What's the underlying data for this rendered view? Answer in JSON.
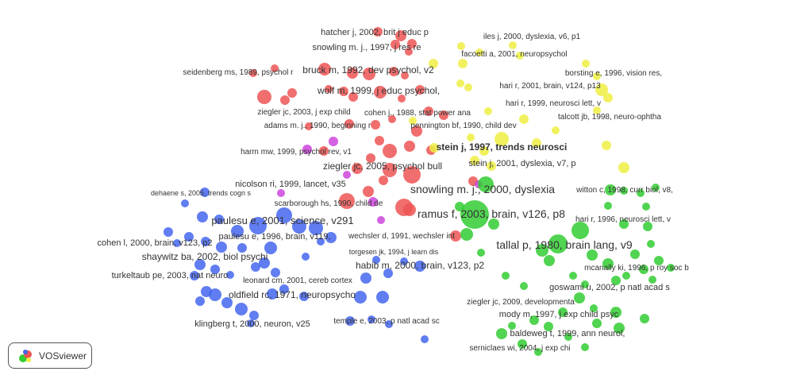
{
  "app": {
    "name": "VOSviewer"
  },
  "cluster_colors": {
    "red": "#ee5555",
    "green": "#33cc33",
    "blue": "#4466ee",
    "yellow": "#eeee44",
    "purple": "#cc44dd"
  },
  "labels": [
    "hatcher j, 2002, brit j educ p",
    "snowling m. j., 1997, j res re",
    "iles j, 2000, dyslexia, v6, p1",
    "facoetti a, 2001, neuropsychol",
    "seidenberg ms, 1989, psychol r",
    "bruck m, 1992, dev psychol, v2",
    "borsting e, 1996, vision res,",
    "hari r, 2001, brain, v124, p13",
    "wolf m, 1999, j educ psychol,",
    "hari r, 1999, neurosci lett, v",
    "ziegler jc, 2003, j exp child",
    "cohen j., 1988, stat power ana",
    "talcott jb, 1998, neuro-ophtha",
    "adams m. j., 1990, beginning r",
    "pennington bf, 1990, child dev",
    "stein j, 1997, trends neurosci",
    "harm mw, 1999, psychol rev, v1",
    "stein j, 2001, dyslexia, v7, p",
    "ziegler jc, 2005, psychol bull",
    "nicolson ri, 1999, lancet, v35",
    "snowling m. j., 2000, dyslexia",
    "witton c, 1998, curr biol, v8,",
    "dehaene s, 2005, trends cogn s",
    "scarborough hs, 1990, child de",
    "ramus f, 2003, brain, v126, p8",
    "paulesu e, 2001, science, v291",
    "hari r, 1996, neurosci lett, v",
    "paulesu e, 1996, brain, v119,",
    "wechsler d, 1991, wechsler int",
    "cohen l, 2000, brain, v123, p2",
    "tallal p, 1980, brain lang, v9",
    "torgesen jk, 1994, j learn dis",
    "shaywitz ba, 2002, biol psychi",
    "habib m, 2000, brain, v123, p2",
    "mcanally ki, 1996, p roy soc b",
    "turkeltaub pe, 2003, nat neuro",
    "leonard cm, 2001, cereb cortex",
    "goswami u, 2002, p natl acad s",
    "oldfield rc, 1971, neuropsycho",
    "ziegler jc, 2009, developmenta",
    "mody m, 1997, j exp child psyc",
    "klingberg t, 2000, neuron, v25",
    "temple e, 2003, p natl acad sc",
    "baldeweg t, 1999, ann neurol,",
    "serniclaes wi, 2004, j exp chi"
  ]
}
